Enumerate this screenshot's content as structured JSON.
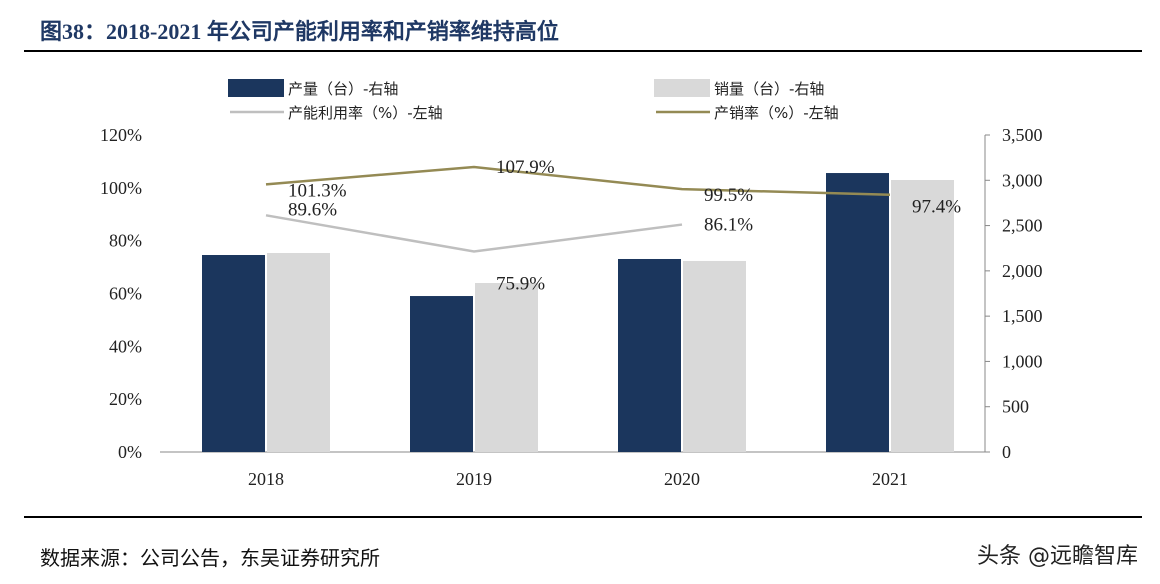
{
  "title": "图38：2018-2021 年公司产能利用率和产销率维持高位",
  "source": "数据来源：公司公告，东吴证券研究所",
  "watermark": "头条 @远瞻智库",
  "chart_data": {
    "type": "bar+line",
    "categories": [
      "2018",
      "2019",
      "2020",
      "2021"
    ],
    "left_axis": {
      "ticks": [
        "0%",
        "20%",
        "40%",
        "60%",
        "80%",
        "100%",
        "120%"
      ],
      "ylim": [
        0,
        120
      ]
    },
    "right_axis": {
      "ticks": [
        "0",
        "500",
        "1,000",
        "1,500",
        "2,000",
        "2,500",
        "3,000",
        "3,500"
      ],
      "ylim": [
        0,
        3500
      ]
    },
    "grid": false,
    "legend_position": "top",
    "series": [
      {
        "name": "产量（台）-右轴",
        "type": "bar",
        "axis": "right",
        "color": "#1b365d",
        "values": [
          2175,
          1722,
          2131,
          3080
        ]
      },
      {
        "name": "销量（台）-右轴",
        "type": "bar",
        "axis": "right",
        "color": "#d9d9d9",
        "values": [
          2197,
          1866,
          2109,
          3003
        ]
      },
      {
        "name": "产能利用率（%）-左轴",
        "type": "line",
        "axis": "left",
        "color": "#bfbfbf",
        "values": [
          89.6,
          75.9,
          86.1,
          null
        ],
        "labels": [
          "89.6%",
          "75.9%",
          "86.1%",
          ""
        ]
      },
      {
        "name": "产销率（%）-左轴",
        "type": "line",
        "axis": "left",
        "color": "#948a54",
        "values": [
          101.3,
          107.9,
          99.5,
          97.4
        ],
        "labels": [
          "101.3%",
          "107.9%",
          "99.5%",
          "97.4%"
        ]
      }
    ]
  }
}
